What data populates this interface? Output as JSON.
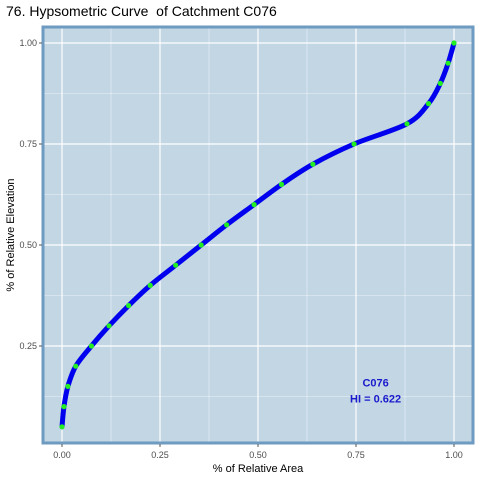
{
  "chart_data": {
    "type": "line",
    "title": "76. Hypsometric Curve  of Catchment C076",
    "xlabel": "% of Relative Area",
    "ylabel": "% of Relative Elevation",
    "xlim": [
      0.0,
      1.0
    ],
    "ylim": [
      0.05,
      1.0
    ],
    "x_ticks": [
      0.0,
      0.25,
      0.5,
      0.75,
      1.0
    ],
    "x_tick_labels": [
      "0.00",
      "0.25",
      "0.50",
      "0.75",
      "1.00"
    ],
    "y_ticks": [
      0.25,
      0.5,
      0.75,
      1.0
    ],
    "y_tick_labels": [
      "0.25",
      "0.50",
      "0.75",
      "1.00"
    ],
    "grid": true,
    "series": [
      {
        "x": [
          0.0,
          0.005,
          0.015,
          0.035,
          0.075,
          0.12,
          0.17,
          0.225,
          0.29,
          0.355,
          0.42,
          0.49,
          0.56,
          0.64,
          0.745,
          0.88,
          0.935,
          0.965,
          0.985,
          1.0
        ],
        "y": [
          0.05,
          0.1,
          0.15,
          0.2,
          0.25,
          0.3,
          0.35,
          0.4,
          0.45,
          0.5,
          0.55,
          0.6,
          0.65,
          0.7,
          0.75,
          0.8,
          0.85,
          0.9,
          0.95,
          1.0
        ]
      }
    ],
    "annotations": [
      {
        "text": "C076",
        "x": 0.8,
        "y": 0.16
      },
      {
        "text": "HI = 0.622",
        "x": 0.8,
        "y": 0.12
      }
    ]
  },
  "colors": {
    "panel_background": "#c2d6e4",
    "panel_border": "#6e9bc1",
    "grid": "#ffffff",
    "line": "#0000ee",
    "points": "#22ee22",
    "annotation": "#1a1acc"
  }
}
